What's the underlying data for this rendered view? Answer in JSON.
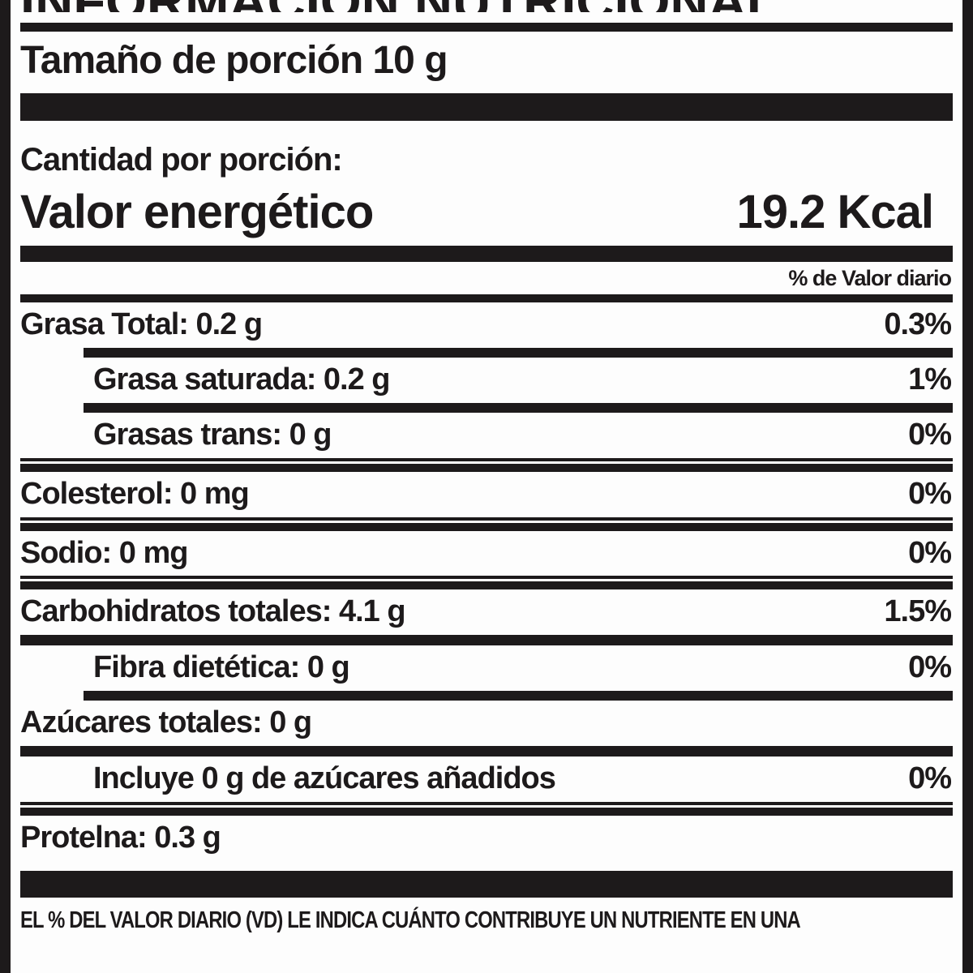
{
  "label": {
    "title": "INFORMACIÓN NUTRICIONAL",
    "serving_size": "Tamaño de porción 10 g",
    "amount_per_serving": "Cantidad por porción:",
    "energy": {
      "name": "Valor energético",
      "value": "19.2 Kcal"
    },
    "dv_header": "% de Valor diario",
    "rows": [
      {
        "text": "Grasa Total: 0.2 g",
        "dv": "0.3%"
      },
      {
        "text": "Grasa saturada: 0.2 g",
        "dv": "1%"
      },
      {
        "text": "Grasas trans: 0 g",
        "dv": "0%"
      },
      {
        "text": "Colesterol: 0 mg",
        "dv": "0%"
      },
      {
        "text": "Sodio: 0 mg",
        "dv": "0%"
      },
      {
        "text": "Carbohidratos totales: 4.1 g",
        "dv": "1.5%"
      },
      {
        "text": "Fibra dietética: 0 g",
        "dv": "0%"
      },
      {
        "text": "Azúcares totales: 0 g",
        "dv": ""
      },
      {
        "text": "Incluye 0 g de azúcares añadidos",
        "dv": "0%"
      },
      {
        "text": "Protelna: 0.3 g",
        "dv": ""
      }
    ],
    "footnote": "EL % DEL VALOR DIARIO (VD) LE INDICA CUÁNTO CONTRIBUYE UN NUTRIENTE EN UNA",
    "colors": {
      "ink": "#1d1a1b",
      "background": "#fdfdfd"
    }
  }
}
